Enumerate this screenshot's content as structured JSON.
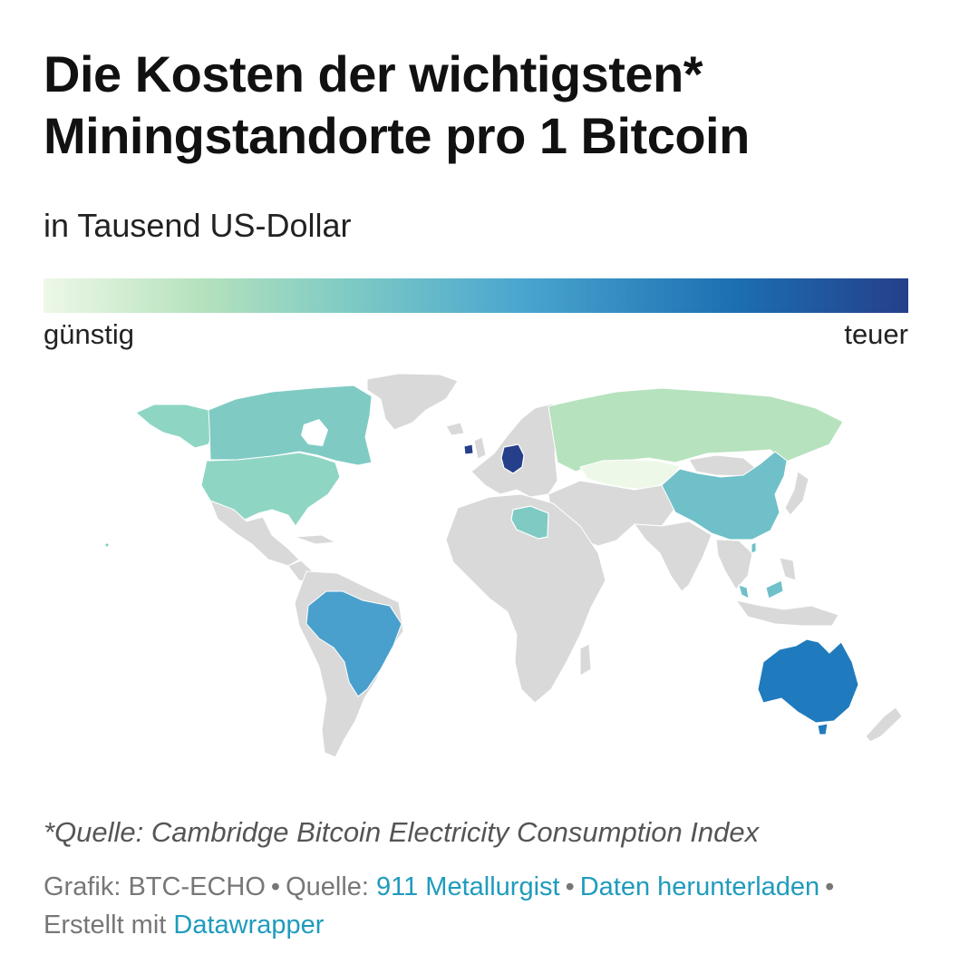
{
  "header": {
    "title_line1": "Die Kosten der wichtigsten*",
    "title_line2": "Miningstandorte pro 1 Bitcoin",
    "subtitle": "in Tausend US-Dollar"
  },
  "legend": {
    "low_label": "günstig",
    "high_label": "teuer",
    "colors": [
      "#eef8e8",
      "#b6e2bd",
      "#7fcbc4",
      "#4aa6cf",
      "#1c6fb2",
      "#253f8a"
    ]
  },
  "map": {
    "no_data_color": "#d9d9d9",
    "highlighted_countries": [
      {
        "name": "Kasachstan",
        "cost_class": "günstig",
        "color": "#eef8e8"
      },
      {
        "name": "Russland",
        "cost_class": "günstig",
        "color": "#b6e2bd"
      },
      {
        "name": "Kanada",
        "cost_class": "mittel",
        "color": "#7fcbc4"
      },
      {
        "name": "USA",
        "cost_class": "mittel",
        "color": "#8fd5c4"
      },
      {
        "name": "China",
        "cost_class": "mittel",
        "color": "#6fc0c9"
      },
      {
        "name": "Libyen",
        "cost_class": "mittel",
        "color": "#7fcbc4"
      },
      {
        "name": "Malaysia",
        "cost_class": "mittel",
        "color": "#6fc0c9"
      },
      {
        "name": "Brasilien",
        "cost_class": "teuer",
        "color": "#4aa0cd"
      },
      {
        "name": "Australien",
        "cost_class": "teuer",
        "color": "#1f7bbd"
      },
      {
        "name": "Deutschland",
        "cost_class": "sehr teuer",
        "color": "#253f8a"
      },
      {
        "name": "Irland",
        "cost_class": "sehr teuer",
        "color": "#253f8a"
      }
    ]
  },
  "footnote": "*Quelle: Cambridge Bitcoin Electricity Consumption Index",
  "footer": {
    "grafik_prefix": "Grafik: BTC-ECHO",
    "quelle_prefix": "Quelle:",
    "quelle_link": "911 Metallurgist",
    "download_link": "Daten herunterladen",
    "created_prefix": "Erstellt mit",
    "created_link": "Datawrapper",
    "separator": "•"
  }
}
